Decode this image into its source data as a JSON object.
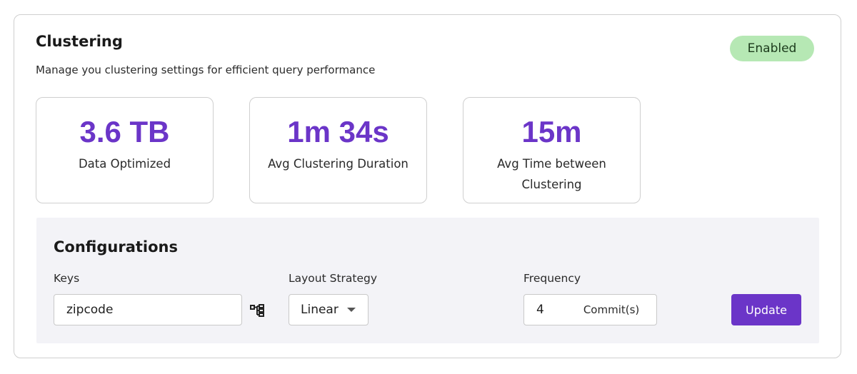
{
  "header": {
    "title": "Clustering",
    "subtitle": "Manage you clustering settings for efficient query performance",
    "status_badge": "Enabled"
  },
  "stats": [
    {
      "value": "3.6 TB",
      "label": "Data Optimized"
    },
    {
      "value": "1m 34s",
      "label": "Avg Clustering Duration"
    },
    {
      "value": "15m",
      "label": "Avg Time between Clustering"
    }
  ],
  "config": {
    "title": "Configurations",
    "keys": {
      "label": "Keys",
      "value": "zipcode",
      "icon": "hierarchy-icon"
    },
    "layout": {
      "label": "Layout Strategy",
      "value": "Linear"
    },
    "frequency": {
      "label": "Frequency",
      "value": "4",
      "unit": "Commit(s)"
    },
    "update_label": "Update"
  },
  "colors": {
    "accent": "#6b35c8",
    "badge_bg": "#b6e8b4",
    "panel_bg": "#f3f3f7"
  }
}
